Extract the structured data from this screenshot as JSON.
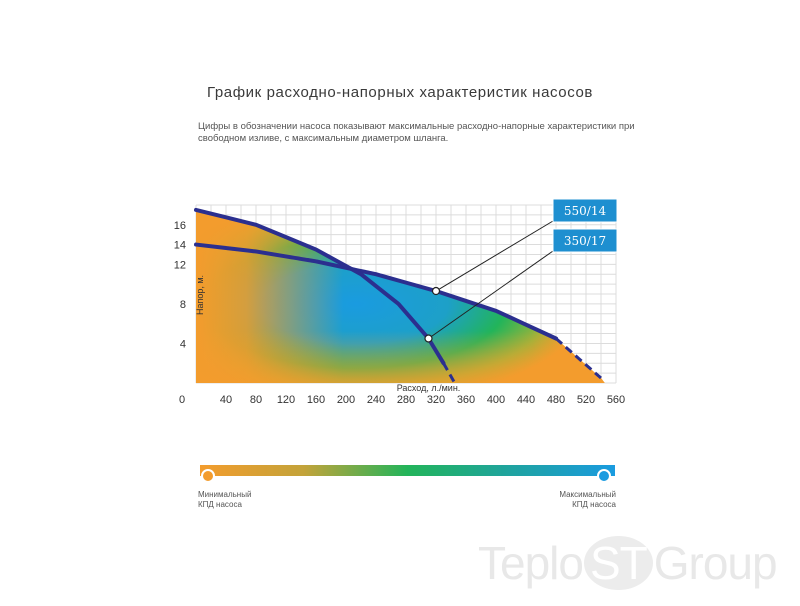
{
  "title": "График расходно-напорных характеристик насосов",
  "subtitle": "Цифры в обозначении насоса показывают максимальные расходно-напорные характеристики при свободном изливе, с максимальным диаметром шланга.",
  "colors": {
    "min_efficiency": "#f39c2d",
    "mid_efficiency": "#22b45a",
    "max_efficiency": "#1a9be0",
    "curve": "#2b2f8f",
    "callout": "#1e8fd0"
  },
  "chart_data": {
    "type": "line",
    "xlabel": "Расход, л./мин.",
    "ylabel": "Напор, м.",
    "x_ticks": [
      "0",
      "40",
      "80",
      "120",
      "160",
      "200",
      "240",
      "280",
      "320",
      "360",
      "400",
      "440",
      "480",
      "520",
      "560"
    ],
    "y_ticks": [
      "4",
      "8",
      "12",
      "14",
      "16"
    ],
    "grid": true,
    "series": [
      {
        "name": "550/14",
        "x": [
          0,
          80,
          160,
          240,
          320,
          400,
          480,
          540
        ],
        "y": [
          14,
          13.3,
          12.3,
          11,
          9.3,
          7.3,
          4.5,
          0.5
        ]
      },
      {
        "name": "350/17",
        "x": [
          0,
          80,
          160,
          220,
          270,
          310,
          330,
          345
        ],
        "y": [
          17.5,
          16,
          13.5,
          11,
          8,
          4.5,
          2,
          0
        ]
      }
    ],
    "callouts": [
      {
        "label": "550/14",
        "x": 320,
        "y": 9.3
      },
      {
        "label": "350/17",
        "x": 310,
        "y": 4.5
      }
    ]
  },
  "legend": {
    "min_label": "Минимальный КПД насоса",
    "max_label": "Максимальный КПД насоса"
  },
  "watermark": {
    "part1": "Teplo",
    "part2": "ST",
    "part3": "Group"
  }
}
